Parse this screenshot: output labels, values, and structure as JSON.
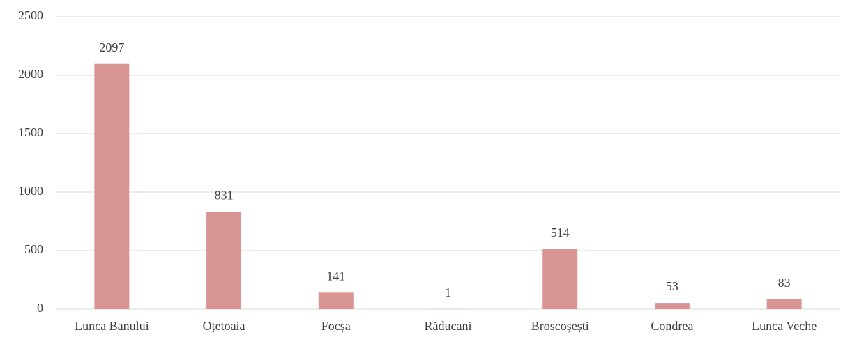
{
  "chart_data": {
    "type": "bar",
    "categories": [
      "Lunca Banului",
      "Oțetoaia",
      "Focșa",
      "Răducani",
      "Broscoșești",
      "Condrea",
      "Lunca Veche"
    ],
    "values": [
      2097,
      831,
      141,
      1,
      514,
      53,
      83
    ],
    "color": "#d99594",
    "ylim": [
      0,
      2500
    ],
    "yticks": [
      0,
      500,
      1000,
      1500,
      2000,
      2500
    ],
    "grid": true
  }
}
